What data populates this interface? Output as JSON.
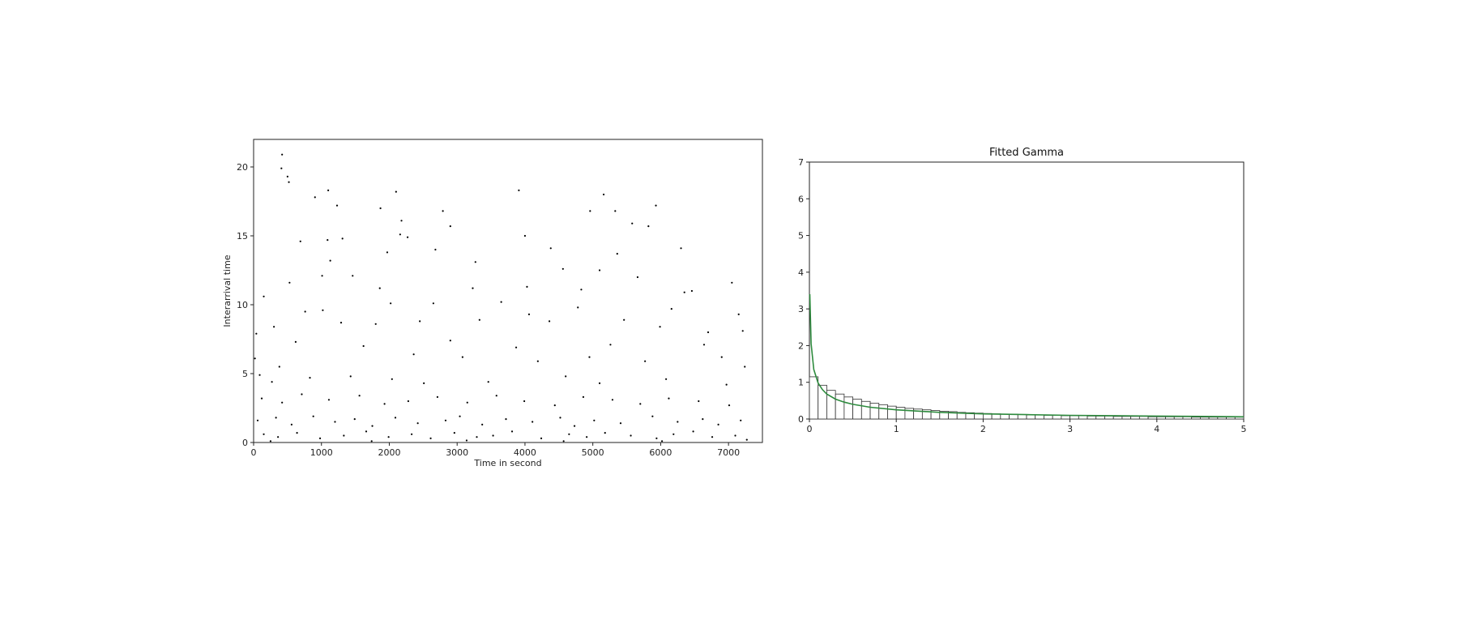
{
  "chart_data": [
    {
      "type": "scatter",
      "title": "",
      "xlabel": "Time in second",
      "ylabel": "Interarrival time",
      "xlim": [
        0,
        7500
      ],
      "ylim": [
        0,
        22
      ],
      "xticks": [
        0,
        1000,
        2000,
        3000,
        4000,
        5000,
        6000,
        7000
      ],
      "yticks": [
        0,
        5,
        10,
        15,
        20
      ],
      "marker_color": "#000000",
      "grid": false,
      "points": [
        [
          420,
          20.9
        ],
        [
          500,
          19.3
        ],
        [
          520,
          18.9
        ],
        [
          410,
          19.9
        ],
        [
          1100,
          18.3
        ],
        [
          1230,
          17.2
        ],
        [
          905,
          17.8
        ],
        [
          2100,
          18.2
        ],
        [
          3910,
          18.3
        ],
        [
          5160,
          18.0
        ],
        [
          5930,
          17.2
        ],
        [
          1870,
          17.0
        ],
        [
          2790,
          16.8
        ],
        [
          4960,
          16.8
        ],
        [
          5330,
          16.8
        ],
        [
          2180,
          16.1
        ],
        [
          2900,
          15.7
        ],
        [
          5820,
          15.7
        ],
        [
          5580,
          15.9
        ],
        [
          4000,
          15.0
        ],
        [
          2160,
          15.1
        ],
        [
          2270,
          14.9
        ],
        [
          1310,
          14.8
        ],
        [
          1090,
          14.7
        ],
        [
          690,
          14.6
        ],
        [
          1970,
          13.8
        ],
        [
          2680,
          14.0
        ],
        [
          5360,
          13.7
        ],
        [
          6300,
          14.1
        ],
        [
          4380,
          14.1
        ],
        [
          3270,
          13.1
        ],
        [
          1130,
          13.2
        ],
        [
          4560,
          12.6
        ],
        [
          5100,
          12.5
        ],
        [
          530,
          11.6
        ],
        [
          1010,
          12.1
        ],
        [
          1460,
          12.1
        ],
        [
          1860,
          11.2
        ],
        [
          3230,
          11.2
        ],
        [
          4030,
          11.3
        ],
        [
          4830,
          11.1
        ],
        [
          5660,
          12.0
        ],
        [
          6460,
          11.0
        ],
        [
          7050,
          11.6
        ],
        [
          150,
          10.6
        ],
        [
          760,
          9.5
        ],
        [
          1020,
          9.6
        ],
        [
          2020,
          10.1
        ],
        [
          2650,
          10.1
        ],
        [
          3650,
          10.2
        ],
        [
          4780,
          9.8
        ],
        [
          6160,
          9.7
        ],
        [
          6350,
          10.9
        ],
        [
          7150,
          9.3
        ],
        [
          40,
          7.9
        ],
        [
          300,
          8.4
        ],
        [
          1290,
          8.7
        ],
        [
          1800,
          8.6
        ],
        [
          2450,
          8.8
        ],
        [
          3330,
          8.9
        ],
        [
          4060,
          9.3
        ],
        [
          4360,
          8.8
        ],
        [
          5460,
          8.9
        ],
        [
          5990,
          8.4
        ],
        [
          6700,
          8.0
        ],
        [
          7210,
          8.1
        ],
        [
          620,
          7.3
        ],
        [
          1620,
          7.0
        ],
        [
          2900,
          7.4
        ],
        [
          3870,
          6.9
        ],
        [
          5260,
          7.1
        ],
        [
          6640,
          7.1
        ],
        [
          20,
          6.1
        ],
        [
          380,
          5.5
        ],
        [
          2360,
          6.4
        ],
        [
          3080,
          6.2
        ],
        [
          4190,
          5.9
        ],
        [
          4950,
          6.2
        ],
        [
          5770,
          5.9
        ],
        [
          6900,
          6.2
        ],
        [
          90,
          4.9
        ],
        [
          270,
          4.4
        ],
        [
          830,
          4.7
        ],
        [
          1430,
          4.8
        ],
        [
          2040,
          4.6
        ],
        [
          2510,
          4.3
        ],
        [
          3460,
          4.4
        ],
        [
          4600,
          4.8
        ],
        [
          5100,
          4.3
        ],
        [
          6080,
          4.6
        ],
        [
          6970,
          4.2
        ],
        [
          7240,
          5.5
        ],
        [
          120,
          3.2
        ],
        [
          420,
          2.9
        ],
        [
          710,
          3.5
        ],
        [
          1110,
          3.1
        ],
        [
          1560,
          3.4
        ],
        [
          1930,
          2.8
        ],
        [
          2280,
          3.0
        ],
        [
          2710,
          3.3
        ],
        [
          3150,
          2.9
        ],
        [
          3580,
          3.4
        ],
        [
          3990,
          3.0
        ],
        [
          4440,
          2.7
        ],
        [
          4860,
          3.3
        ],
        [
          5290,
          3.1
        ],
        [
          5700,
          2.8
        ],
        [
          6120,
          3.2
        ],
        [
          6560,
          3.0
        ],
        [
          7010,
          2.7
        ],
        [
          60,
          1.6
        ],
        [
          330,
          1.8
        ],
        [
          560,
          1.3
        ],
        [
          880,
          1.9
        ],
        [
          1200,
          1.5
        ],
        [
          1490,
          1.7
        ],
        [
          1750,
          1.2
        ],
        [
          2090,
          1.8
        ],
        [
          2420,
          1.4
        ],
        [
          2830,
          1.6
        ],
        [
          3040,
          1.9
        ],
        [
          3370,
          1.3
        ],
        [
          3720,
          1.7
        ],
        [
          4110,
          1.5
        ],
        [
          4520,
          1.8
        ],
        [
          4730,
          1.2
        ],
        [
          5020,
          1.6
        ],
        [
          5410,
          1.4
        ],
        [
          5880,
          1.9
        ],
        [
          6250,
          1.5
        ],
        [
          6620,
          1.7
        ],
        [
          6850,
          1.3
        ],
        [
          7180,
          1.6
        ],
        [
          150,
          0.6
        ],
        [
          360,
          0.4
        ],
        [
          640,
          0.7
        ],
        [
          980,
          0.3
        ],
        [
          1330,
          0.5
        ],
        [
          1660,
          0.8
        ],
        [
          1990,
          0.4
        ],
        [
          2330,
          0.6
        ],
        [
          2610,
          0.3
        ],
        [
          2960,
          0.7
        ],
        [
          3290,
          0.4
        ],
        [
          3530,
          0.5
        ],
        [
          3810,
          0.8
        ],
        [
          4240,
          0.3
        ],
        [
          4650,
          0.6
        ],
        [
          4910,
          0.4
        ],
        [
          5180,
          0.7
        ],
        [
          5560,
          0.5
        ],
        [
          5940,
          0.3
        ],
        [
          6190,
          0.6
        ],
        [
          6480,
          0.8
        ],
        [
          6760,
          0.4
        ],
        [
          7100,
          0.5
        ],
        [
          7270,
          0.2
        ],
        [
          250,
          0.1
        ],
        [
          1740,
          0.1
        ],
        [
          3140,
          0.15
        ],
        [
          4570,
          0.1
        ],
        [
          6020,
          0.1
        ]
      ]
    },
    {
      "type": "bar",
      "title": "Fitted Gamma",
      "xlabel": "",
      "ylabel": "",
      "xlim": [
        0,
        5
      ],
      "ylim": [
        0,
        7
      ],
      "xticks": [
        0,
        1,
        2,
        3,
        4,
        5
      ],
      "yticks": [
        0,
        1,
        2,
        3,
        4,
        5,
        6,
        7
      ],
      "bin_width": 0.1,
      "histogram_density": [
        1.15,
        0.92,
        0.78,
        0.68,
        0.6,
        0.54,
        0.48,
        0.43,
        0.39,
        0.35,
        0.32,
        0.29,
        0.27,
        0.25,
        0.23,
        0.21,
        0.2,
        0.18,
        0.17,
        0.16,
        0.15,
        0.14,
        0.13,
        0.13,
        0.12,
        0.11,
        0.11,
        0.1,
        0.1,
        0.09,
        0.09,
        0.09,
        0.08,
        0.08,
        0.08,
        0.07,
        0.07,
        0.07,
        0.07,
        0.06,
        0.06,
        0.06,
        0.06,
        0.06,
        0.05,
        0.05,
        0.05,
        0.05,
        0.05,
        0.05
      ],
      "series": [
        {
          "type": "line",
          "color": "#2e8b3e",
          "x": [
            0.005,
            0.02,
            0.05,
            0.1,
            0.15,
            0.2,
            0.3,
            0.4,
            0.5,
            0.7,
            1.0,
            1.5,
            2.0,
            2.5,
            3.0,
            3.5,
            4.0,
            4.5,
            5.0
          ],
          "y": [
            3.4,
            2.05,
            1.35,
            0.98,
            0.8,
            0.68,
            0.54,
            0.46,
            0.4,
            0.32,
            0.25,
            0.18,
            0.14,
            0.12,
            0.1,
            0.09,
            0.08,
            0.07,
            0.06
          ]
        }
      ]
    }
  ]
}
